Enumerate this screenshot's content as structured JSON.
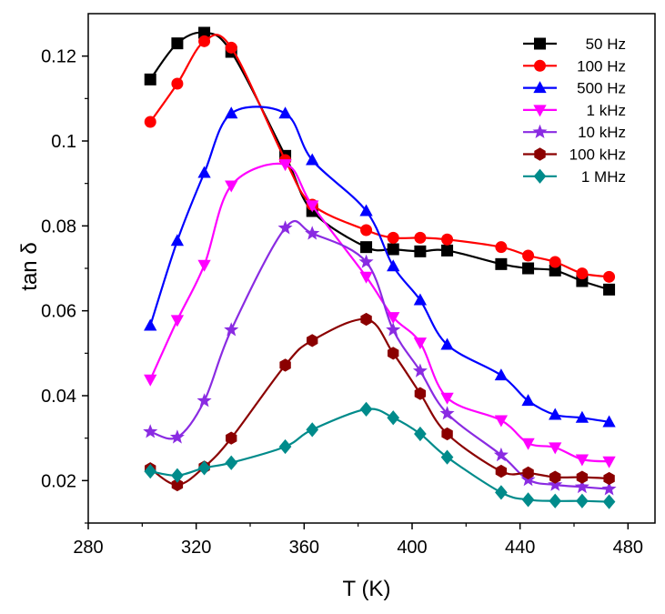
{
  "chart_data": {
    "type": "line",
    "title": "",
    "xlabel": "T (K)",
    "ylabel": "tan δ",
    "xlim": [
      280,
      490
    ],
    "ylim": [
      0.01,
      0.13
    ],
    "x_ticks": [
      280,
      320,
      360,
      400,
      440,
      480
    ],
    "y_ticks": [
      0.02,
      0.04,
      0.06,
      0.08,
      0.1,
      0.12
    ],
    "x_tick_labels": [
      "280",
      "320",
      "360",
      "400",
      "440",
      "480"
    ],
    "y_tick_labels": [
      "0.02",
      "0.04",
      "0.06",
      "0.08",
      "0.1",
      "0.12"
    ],
    "grid": false,
    "legend_position": "top-right",
    "x": [
      303,
      313,
      323,
      333,
      353,
      363,
      383,
      393,
      403,
      413,
      433,
      443,
      453,
      463,
      473
    ],
    "series": [
      {
        "name": "50 Hz",
        "color": "#000000",
        "marker": "square",
        "values": [
          0.1145,
          0.123,
          0.1255,
          0.121,
          0.0965,
          0.0835,
          0.075,
          0.0745,
          0.074,
          0.0742,
          0.071,
          0.07,
          0.0695,
          0.067,
          0.065
        ]
      },
      {
        "name": "100 Hz",
        "color": "#ff0000",
        "marker": "circle",
        "values": [
          0.1045,
          0.1135,
          0.1235,
          0.122,
          0.0955,
          0.085,
          0.079,
          0.0772,
          0.0772,
          0.0768,
          0.075,
          0.073,
          0.0715,
          0.0688,
          0.068
        ]
      },
      {
        "name": "500 Hz",
        "color": "#0000ff",
        "marker": "triangle-up",
        "values": [
          0.0565,
          0.0765,
          0.0925,
          0.1065,
          0.1065,
          0.0955,
          0.0835,
          0.0705,
          0.0625,
          0.052,
          0.0448,
          0.0388,
          0.0355,
          0.0348,
          0.0338
        ]
      },
      {
        "name": "1 kHz",
        "color": "#ff00ff",
        "marker": "triangle-down",
        "values": [
          0.0438,
          0.0578,
          0.0708,
          0.0895,
          0.0945,
          0.0848,
          0.068,
          0.0585,
          0.0525,
          0.0395,
          0.0342,
          0.0288,
          0.0278,
          0.025,
          0.0245
        ]
      },
      {
        "name": "10 kHz",
        "color": "#8a2be2",
        "marker": "star",
        "values": [
          0.0315,
          0.0302,
          0.0388,
          0.0555,
          0.0795,
          0.0782,
          0.0715,
          0.0555,
          0.0458,
          0.0358,
          0.026,
          0.0202,
          0.019,
          0.0185,
          0.018
        ]
      },
      {
        "name": "100 kHz",
        "color": "#8b0000",
        "marker": "hexagon",
        "values": [
          0.0228,
          0.019,
          0.0232,
          0.03,
          0.0472,
          0.053,
          0.058,
          0.05,
          0.0405,
          0.031,
          0.0222,
          0.0218,
          0.0208,
          0.0208,
          0.0205
        ]
      },
      {
        "name": "1 MHz",
        "color": "#008b8b",
        "marker": "diamond",
        "values": [
          0.0222,
          0.0212,
          0.023,
          0.0242,
          0.028,
          0.032,
          0.0368,
          0.0348,
          0.031,
          0.0255,
          0.0172,
          0.0155,
          0.0152,
          0.0152,
          0.015
        ]
      }
    ]
  }
}
